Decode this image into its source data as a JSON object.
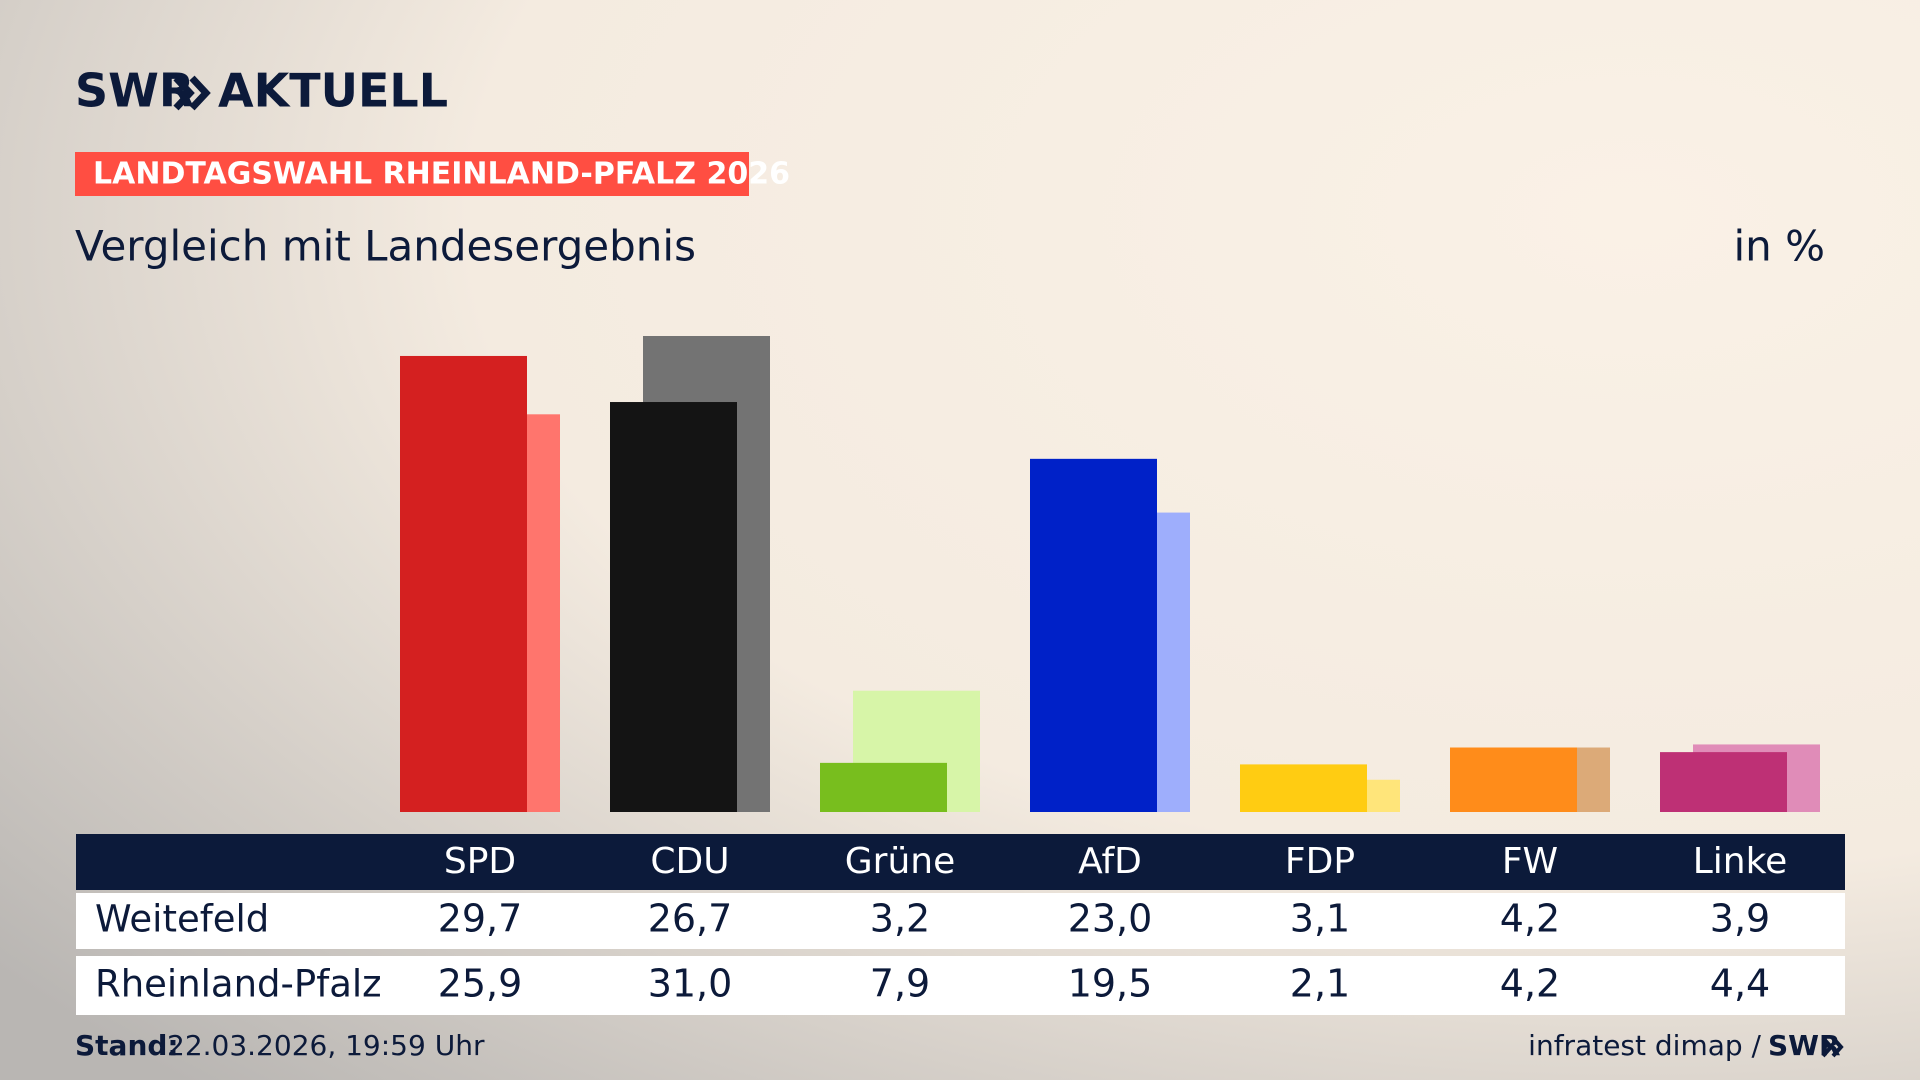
{
  "header": {
    "logo": "SWR",
    "logo_suffix": "AKTUELL",
    "banner": "LANDTAGSWAHL RHEINLAND-PFALZ 2026"
  },
  "chart_data": {
    "type": "bar",
    "title": "Vergleich mit Landesergebnis",
    "unit": "in %",
    "categories": [
      "SPD",
      "CDU",
      "Grüne",
      "AfD",
      "FDP",
      "FW",
      "Linke"
    ],
    "series": [
      {
        "name": "Weitefeld",
        "colors": [
          "#d42020",
          "#141414",
          "#78be1e",
          "#0021c8",
          "#ffcc12",
          "#ff8c1a",
          "#be3075"
        ],
        "values": [
          29.7,
          26.7,
          3.2,
          23.0,
          3.1,
          4.2,
          3.9
        ],
        "value_labels": [
          "29,7",
          "26,7",
          "3,2",
          "23,0",
          "3,1",
          "4,2",
          "3,9"
        ]
      },
      {
        "name": "Rheinland-Pfalz",
        "colors": [
          "#ff756d",
          "#737373",
          "#d7f5a8",
          "#9eaefc",
          "#ffe57a",
          "#dcaa78",
          "#e08cb8"
        ],
        "values": [
          25.9,
          31.0,
          7.9,
          19.5,
          2.1,
          4.2,
          4.4
        ],
        "value_labels": [
          "25,9",
          "31,0",
          "7,9",
          "19,5",
          "2,1",
          "4,2",
          "4,4"
        ]
      }
    ]
  },
  "footer": {
    "stand_label": "Stand:",
    "stand": "22.03.2026, 19:59 Uhr",
    "source": "infratest dimap /",
    "source_logo": "SWR"
  }
}
